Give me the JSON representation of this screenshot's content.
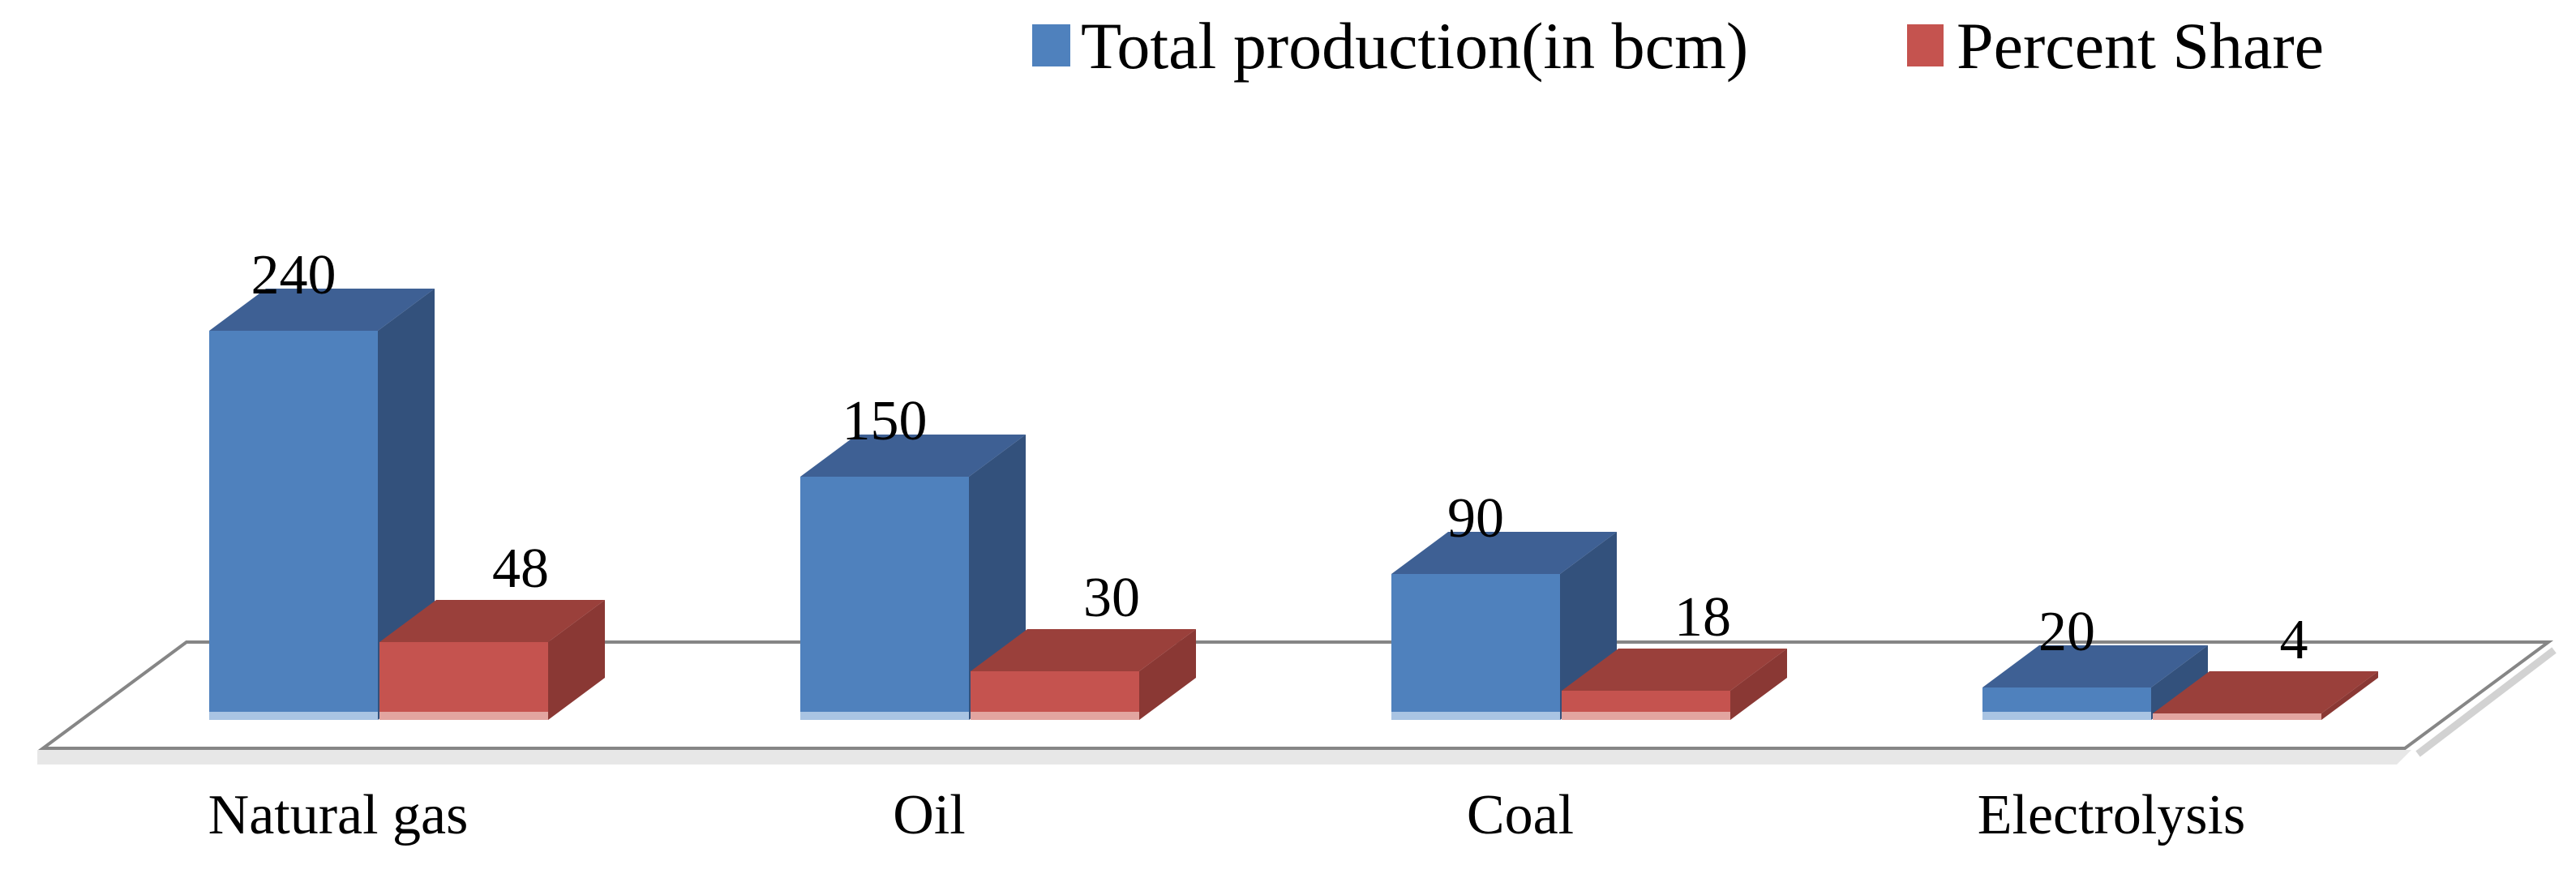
{
  "chart_data": {
    "type": "bar",
    "style": "3d-clustered-column",
    "title": "",
    "categories": [
      "Natural gas",
      "Oil",
      "Coal",
      "Electrolysis"
    ],
    "series": [
      {
        "name": "Total production(in bcm)",
        "values": [
          240,
          150,
          90,
          20
        ],
        "color": "#4F81BD",
        "top_color": "#3E6094",
        "side_color": "#33517C",
        "bottom_edge_color": "#A9C4E3"
      },
      {
        "name": "Percent Share",
        "values": [
          48,
          30,
          18,
          4
        ],
        "color": "#C5534F",
        "top_color": "#9A403B",
        "side_color": "#8A3834",
        "bottom_edge_color": "#E2A5A0"
      }
    ],
    "value_labels": {
      "shown": true,
      "color": "#000000"
    },
    "legend_position": "top",
    "axes": {
      "value_axis_visible": false,
      "gridlines": false
    },
    "floor": {
      "line_color": "#868686",
      "shadow_color": "#E7E7E7",
      "fill": "#FFFFFF"
    },
    "background": "#FFFFFF"
  }
}
